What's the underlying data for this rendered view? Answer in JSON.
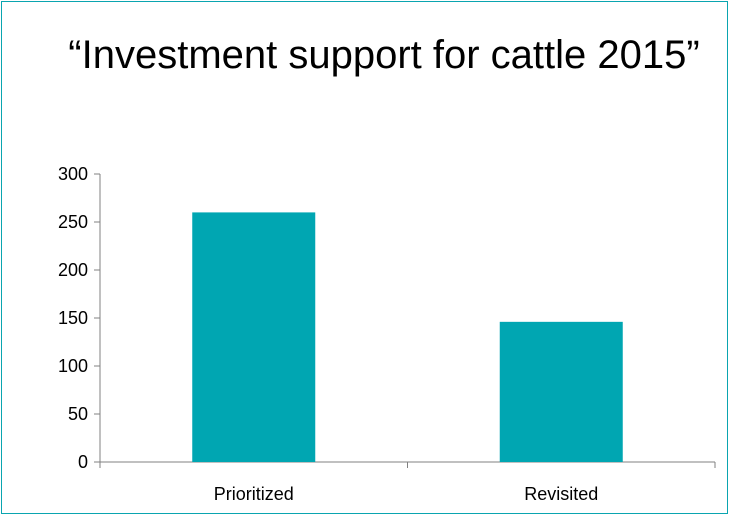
{
  "chart_data": {
    "type": "bar",
    "title": "“Investment support for cattle 2015”",
    "categories": [
      "Prioritized",
      "Revisited"
    ],
    "values": [
      260,
      146
    ],
    "ylim": [
      0,
      300
    ],
    "yticks": [
      "0",
      "50",
      "100",
      "150",
      "200",
      "250",
      "300"
    ],
    "xlabel": "",
    "ylabel": "",
    "grid": false,
    "legend": "none"
  },
  "colors": {
    "bar": "#00a6b2",
    "frame": "#0aa5b0",
    "axis": "#808080"
  }
}
